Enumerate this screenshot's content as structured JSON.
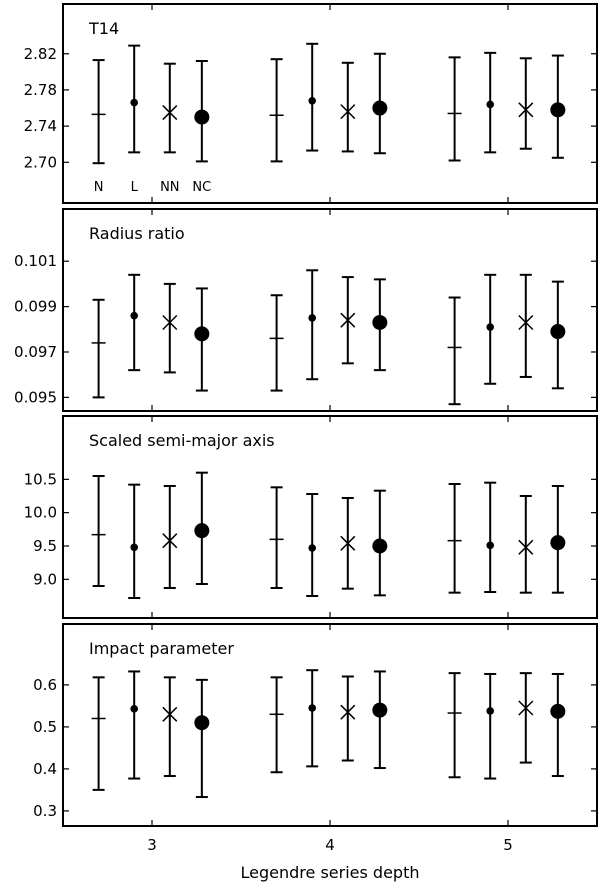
{
  "chart_data": {
    "type": "scatter",
    "xlabel": "Legendre series depth",
    "x_ticks": [
      3,
      4,
      5
    ],
    "xlim": [
      2.5,
      5.5
    ],
    "methods": [
      {
        "label": "N",
        "marker": "plus"
      },
      {
        "label": "L",
        "marker": "small-dot"
      },
      {
        "label": "NN",
        "marker": "cross"
      },
      {
        "label": "NC",
        "marker": "large-dot"
      }
    ],
    "method_offsets": [
      -0.3,
      -0.1,
      0.1,
      0.28
    ],
    "panels": [
      {
        "title": "T14",
        "show_method_labels": true,
        "ylim": [
          2.655,
          2.875
        ],
        "yticks": [
          "2.70",
          "2.74",
          "2.78",
          "2.82"
        ],
        "groups": [
          {
            "depth": 3,
            "points": [
              {
                "value": 2.753,
                "low": 2.699,
                "high": 2.813
              },
              {
                "value": 2.766,
                "low": 2.711,
                "high": 2.829
              },
              {
                "value": 2.755,
                "low": 2.711,
                "high": 2.809
              },
              {
                "value": 2.75,
                "low": 2.701,
                "high": 2.812
              }
            ]
          },
          {
            "depth": 4,
            "points": [
              {
                "value": 2.752,
                "low": 2.701,
                "high": 2.814
              },
              {
                "value": 2.768,
                "low": 2.713,
                "high": 2.831
              },
              {
                "value": 2.756,
                "low": 2.712,
                "high": 2.81
              },
              {
                "value": 2.76,
                "low": 2.71,
                "high": 2.82
              }
            ]
          },
          {
            "depth": 5,
            "points": [
              {
                "value": 2.754,
                "low": 2.702,
                "high": 2.816
              },
              {
                "value": 2.764,
                "low": 2.711,
                "high": 2.821
              },
              {
                "value": 2.758,
                "low": 2.715,
                "high": 2.815
              },
              {
                "value": 2.758,
                "low": 2.705,
                "high": 2.818
              }
            ]
          }
        ]
      },
      {
        "title": "Radius ratio",
        "show_method_labels": false,
        "ylim": [
          0.0944,
          0.1033
        ],
        "yticks": [
          "0.095",
          "0.097",
          "0.099",
          "0.101"
        ],
        "groups": [
          {
            "depth": 3,
            "points": [
              {
                "value": 0.0974,
                "low": 0.095,
                "high": 0.0993
              },
              {
                "value": 0.0986,
                "low": 0.0962,
                "high": 0.1004
              },
              {
                "value": 0.0983,
                "low": 0.0961,
                "high": 0.1
              },
              {
                "value": 0.0978,
                "low": 0.0953,
                "high": 0.0998
              }
            ]
          },
          {
            "depth": 4,
            "points": [
              {
                "value": 0.0976,
                "low": 0.0953,
                "high": 0.0995
              },
              {
                "value": 0.0985,
                "low": 0.0958,
                "high": 0.1006
              },
              {
                "value": 0.0984,
                "low": 0.0965,
                "high": 0.1003
              },
              {
                "value": 0.0983,
                "low": 0.0962,
                "high": 0.1002
              }
            ]
          },
          {
            "depth": 5,
            "points": [
              {
                "value": 0.0972,
                "low": 0.0947,
                "high": 0.0994
              },
              {
                "value": 0.0981,
                "low": 0.0956,
                "high": 0.1004
              },
              {
                "value": 0.0983,
                "low": 0.0959,
                "high": 0.1004
              },
              {
                "value": 0.0979,
                "low": 0.0954,
                "high": 0.1001
              }
            ]
          }
        ]
      },
      {
        "title": "Scaled semi-major axis",
        "show_method_labels": false,
        "ylim": [
          8.42,
          11.45
        ],
        "yticks": [
          "9.0",
          "9.5",
          "10.0",
          "10.5"
        ],
        "groups": [
          {
            "depth": 3,
            "points": [
              {
                "value": 9.67,
                "low": 8.9,
                "high": 10.55
              },
              {
                "value": 9.48,
                "low": 8.72,
                "high": 10.42
              },
              {
                "value": 9.58,
                "low": 8.87,
                "high": 10.4
              },
              {
                "value": 9.73,
                "low": 8.93,
                "high": 10.6
              }
            ]
          },
          {
            "depth": 4,
            "points": [
              {
                "value": 9.6,
                "low": 8.87,
                "high": 10.38
              },
              {
                "value": 9.47,
                "low": 8.75,
                "high": 10.28
              },
              {
                "value": 9.54,
                "low": 8.86,
                "high": 10.22
              },
              {
                "value": 9.5,
                "low": 8.76,
                "high": 10.33
              }
            ]
          },
          {
            "depth": 5,
            "points": [
              {
                "value": 9.58,
                "low": 8.8,
                "high": 10.43
              },
              {
                "value": 9.51,
                "low": 8.81,
                "high": 10.45
              },
              {
                "value": 9.48,
                "low": 8.8,
                "high": 10.25
              },
              {
                "value": 9.55,
                "low": 8.8,
                "high": 10.4
              }
            ]
          }
        ]
      },
      {
        "title": "Impact parameter",
        "show_method_labels": false,
        "ylim": [
          0.264,
          0.745
        ],
        "yticks": [
          "0.3",
          "0.4",
          "0.5",
          "0.6"
        ],
        "groups": [
          {
            "depth": 3,
            "points": [
              {
                "value": 0.52,
                "low": 0.35,
                "high": 0.618
              },
              {
                "value": 0.543,
                "low": 0.377,
                "high": 0.632
              },
              {
                "value": 0.53,
                "low": 0.383,
                "high": 0.618
              },
              {
                "value": 0.51,
                "low": 0.333,
                "high": 0.612
              }
            ]
          },
          {
            "depth": 4,
            "points": [
              {
                "value": 0.53,
                "low": 0.392,
                "high": 0.618
              },
              {
                "value": 0.545,
                "low": 0.406,
                "high": 0.635
              },
              {
                "value": 0.535,
                "low": 0.42,
                "high": 0.62
              },
              {
                "value": 0.54,
                "low": 0.402,
                "high": 0.632
              }
            ]
          },
          {
            "depth": 5,
            "points": [
              {
                "value": 0.533,
                "low": 0.38,
                "high": 0.628
              },
              {
                "value": 0.538,
                "low": 0.377,
                "high": 0.626
              },
              {
                "value": 0.545,
                "low": 0.415,
                "high": 0.628
              },
              {
                "value": 0.537,
                "low": 0.383,
                "high": 0.626
              }
            ]
          }
        ]
      }
    ]
  }
}
